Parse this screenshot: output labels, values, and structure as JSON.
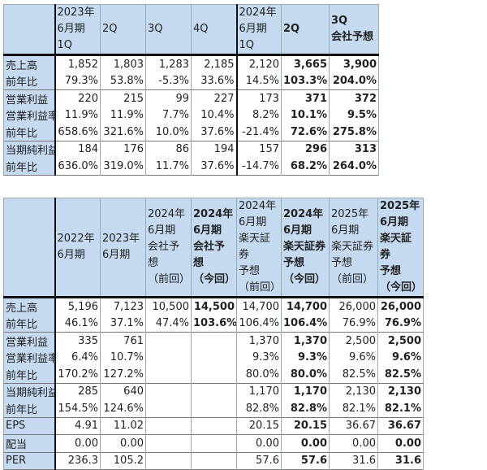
{
  "quarterly": {
    "headers": [
      [
        "",
        ""
      ],
      [
        "2023年",
        "6月期",
        "1Q"
      ],
      [
        "2Q"
      ],
      [
        "3Q"
      ],
      [
        "4Q"
      ],
      [
        "2024年",
        "6月期",
        "1Q"
      ],
      [
        "2Q"
      ],
      [
        "3Q",
        "会社予想"
      ]
    ],
    "bold_cols": [
      6,
      7
    ],
    "rows": [
      {
        "label": "売上高",
        "values": [
          "1,852",
          "1,803",
          "1,283",
          "2,185",
          "2,120",
          "3,665",
          "3,900"
        ],
        "group_start": true
      },
      {
        "label": "前年比",
        "values": [
          "79.3%",
          "53.8%",
          "-5.3%",
          "33.6%",
          "14.5%",
          "103.3%",
          "204.0%"
        ]
      },
      {
        "label": "営業利益",
        "values": [
          "220",
          "215",
          "99",
          "227",
          "173",
          "371",
          "372"
        ],
        "group_start": true
      },
      {
        "label": "営業利益率",
        "values": [
          "11.9%",
          "11.9%",
          "7.7%",
          "10.4%",
          "8.2%",
          "10.1%",
          "9.5%"
        ]
      },
      {
        "label": "前年比",
        "values": [
          "658.6%",
          "321.6%",
          "10.0%",
          "37.6%",
          "-21.4%",
          "72.6%",
          "275.8%"
        ]
      },
      {
        "label": "当期純利益",
        "values": [
          "184",
          "176",
          "86",
          "194",
          "157",
          "296",
          "313"
        ],
        "group_start": true
      },
      {
        "label": "前年比",
        "values": [
          "636.0%",
          "319.0%",
          "11.7%",
          "37.6%",
          "-14.7%",
          "68.2%",
          "264.0%"
        ]
      }
    ]
  },
  "annual": {
    "headers": [
      [
        ""
      ],
      [
        "2022年",
        "6月期"
      ],
      [
        "2023年",
        "6月期"
      ],
      [
        "2024年",
        "6月期",
        "会社予想",
        "（前回）"
      ],
      [
        "2024年",
        "6月期",
        "会社予想",
        "（今回）"
      ],
      [
        "2024年",
        "6月期",
        "楽天証券",
        "予想",
        "（前回）"
      ],
      [
        "2024年",
        "6月期",
        "楽天証券",
        "予想",
        "（今回）"
      ],
      [
        "2025年",
        "6月期",
        "楽天証券",
        "予想",
        "（前回）"
      ],
      [
        "2025年",
        "6月期",
        "楽天証券",
        "予想",
        "（今回）"
      ]
    ],
    "bold_cols": [
      4,
      6,
      8
    ],
    "rows": [
      {
        "label": "売上高",
        "values": [
          "5,196",
          "7,123",
          "10,500",
          "14,500",
          "14,700",
          "14,700",
          "26,000",
          "26,000"
        ],
        "group_start": true
      },
      {
        "label": "前年比",
        "values": [
          "46.1%",
          "37.1%",
          "47.4%",
          "103.6%",
          "106.4%",
          "106.4%",
          "76.9%",
          "76.9%"
        ]
      },
      {
        "label": "営業利益",
        "values": [
          "335",
          "761",
          "",
          "",
          "1,370",
          "1,370",
          "2,500",
          "2,500"
        ],
        "group_start": true
      },
      {
        "label": "営業利益率",
        "values": [
          "6.4%",
          "10.7%",
          "",
          "",
          "9.3%",
          "9.3%",
          "9.6%",
          "9.6%"
        ]
      },
      {
        "label": "前年比",
        "values": [
          "170.2%",
          "127.2%",
          "",
          "",
          "80.0%",
          "80.0%",
          "82.5%",
          "82.5%"
        ]
      },
      {
        "label": "当期純利益",
        "values": [
          "285",
          "640",
          "",
          "",
          "1,170",
          "1,170",
          "2,130",
          "2,130"
        ],
        "group_start": true
      },
      {
        "label": "前年比",
        "values": [
          "154.5%",
          "124.6%",
          "",
          "",
          "82.8%",
          "82.8%",
          "82.1%",
          "82.1%"
        ]
      },
      {
        "label": "EPS",
        "values": [
          "4.91",
          "11.02",
          "",
          "",
          "20.15",
          "20.15",
          "36.67",
          "36.67"
        ],
        "group_start": true
      },
      {
        "label": "配当",
        "values": [
          "0.00",
          "0.00",
          "",
          "",
          "0.00",
          "0.00",
          "0.00",
          "0.00"
        ],
        "group_start": true
      },
      {
        "label": "PER",
        "values": [
          "236.3",
          "105.2",
          "",
          "",
          "57.6",
          "57.6",
          "31.6",
          "31.6"
        ],
        "group_start": true
      }
    ]
  }
}
